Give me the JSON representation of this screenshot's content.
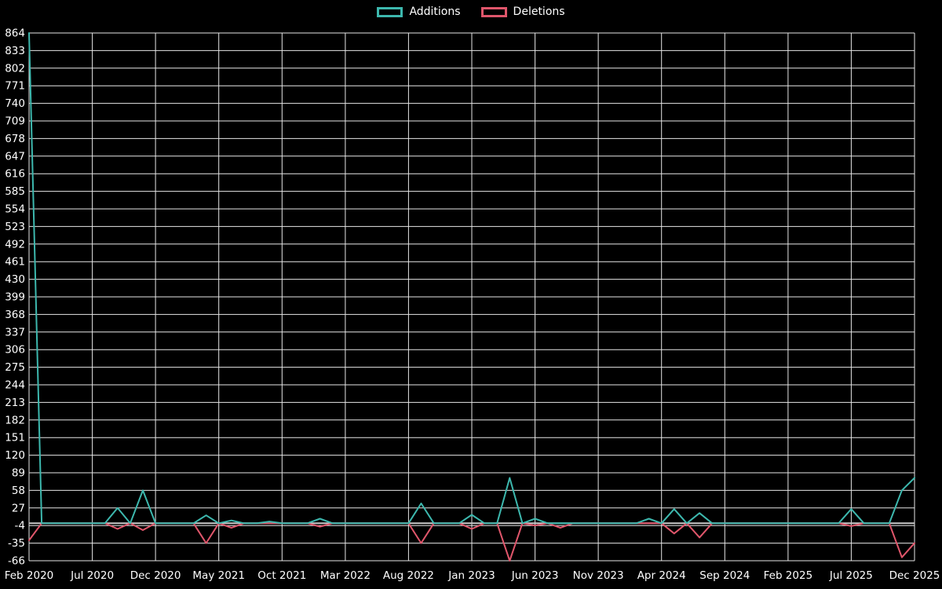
{
  "legend": {
    "items": [
      {
        "label": "Additions",
        "color": "#3db8ae"
      },
      {
        "label": "Deletions",
        "color": "#e0566b"
      }
    ]
  },
  "chart_data": {
    "type": "line",
    "title": "",
    "xlabel": "",
    "ylabel": "",
    "background": "#000000",
    "grid": true,
    "grid_color": "#e6e6e6",
    "axis_text_color": "#ffffff",
    "zero_line_color": "#c9c9c9",
    "legend_position": "top-center",
    "ylim": [
      -66,
      864
    ],
    "y_ticks": [
      864,
      833,
      802,
      771,
      740,
      709,
      678,
      647,
      616,
      585,
      554,
      523,
      492,
      461,
      430,
      399,
      368,
      337,
      306,
      275,
      244,
      213,
      182,
      151,
      120,
      89,
      58,
      27,
      -4,
      -35,
      -66
    ],
    "x_labels": [
      "Feb 2020",
      "Jul 2020",
      "Dec 2020",
      "May 2021",
      "Oct 2021",
      "Mar 2022",
      "Aug 2022",
      "Jan 2023",
      "Jun 2023",
      "Nov 2023",
      "Apr 2024",
      "Sep 2024",
      "Feb 2025",
      "Jul 2025",
      "Dec 2025"
    ],
    "x_tick_interval_months": 5,
    "x_start": "Feb 2020",
    "x_end": "Dec 2025",
    "points_per_series": 71,
    "series": [
      {
        "name": "Additions",
        "color": "#3db8ae",
        "values": [
          864,
          0,
          0,
          0,
          0,
          0,
          0,
          27,
          0,
          58,
          0,
          0,
          0,
          0,
          14,
          0,
          5,
          0,
          0,
          3,
          0,
          0,
          0,
          8,
          0,
          0,
          0,
          0,
          0,
          0,
          0,
          35,
          0,
          0,
          0,
          15,
          0,
          0,
          80,
          0,
          8,
          0,
          0,
          0,
          0,
          0,
          0,
          0,
          0,
          8,
          0,
          25,
          0,
          18,
          0,
          0,
          0,
          0,
          0,
          0,
          0,
          0,
          0,
          0,
          0,
          25,
          0,
          0,
          0,
          58,
          80
        ]
      },
      {
        "name": "Deletions",
        "color": "#e0566b",
        "values": [
          -30,
          0,
          0,
          0,
          0,
          0,
          0,
          -10,
          0,
          -12,
          0,
          0,
          0,
          0,
          -35,
          0,
          -8,
          0,
          0,
          0,
          0,
          0,
          0,
          -6,
          0,
          0,
          0,
          0,
          0,
          0,
          0,
          -35,
          0,
          0,
          0,
          -10,
          0,
          0,
          -66,
          0,
          -4,
          0,
          -8,
          0,
          0,
          0,
          0,
          0,
          0,
          0,
          0,
          -18,
          0,
          -25,
          0,
          0,
          0,
          0,
          0,
          0,
          0,
          0,
          0,
          0,
          0,
          -5,
          0,
          0,
          0,
          -60,
          -35
        ]
      }
    ]
  }
}
